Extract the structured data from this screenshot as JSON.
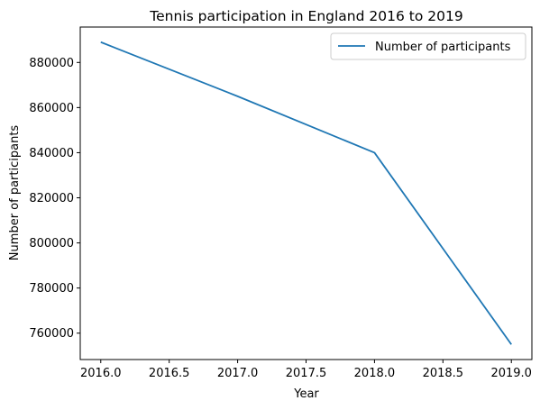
{
  "chart_data": {
    "type": "line",
    "title": "Tennis participation in England 2016 to 2019",
    "xlabel": "Year",
    "ylabel": "Number of participants",
    "x": [
      2016,
      2017,
      2018,
      2019
    ],
    "series": [
      {
        "name": "Number of participants",
        "values": [
          889000,
          865000,
          840000,
          755000
        ],
        "color": "#1f77b4"
      }
    ],
    "xlim": [
      2015.85,
      2019.15
    ],
    "ylim": [
      748300,
      895700
    ],
    "xticks": [
      2016.0,
      2016.5,
      2017.0,
      2017.5,
      2018.0,
      2018.5,
      2019.0
    ],
    "xtick_labels": [
      "2016.0",
      "2016.5",
      "2017.0",
      "2017.5",
      "2018.0",
      "2018.5",
      "2019.0"
    ],
    "yticks": [
      760000,
      780000,
      800000,
      820000,
      840000,
      860000,
      880000
    ],
    "ytick_labels": [
      "760000",
      "780000",
      "800000",
      "820000",
      "840000",
      "860000",
      "880000"
    ],
    "grid": false,
    "legend_position": "top-right"
  }
}
